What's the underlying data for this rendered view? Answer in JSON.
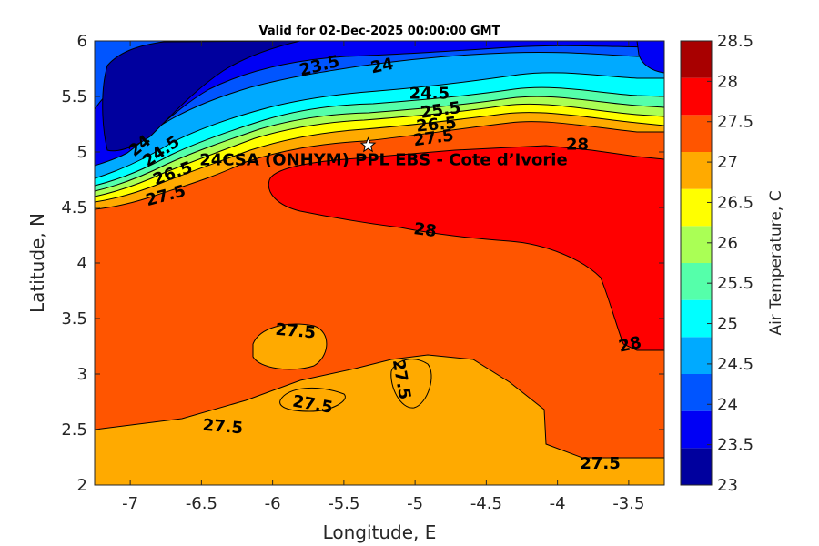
{
  "chart_data": {
    "type": "heatmap",
    "title": "Valid for 02-Dec-2025 00:00:00 GMT",
    "xlabel": "Longitude, E",
    "ylabel": "Latitude, N",
    "xlim": [
      -7.25,
      -3.25
    ],
    "ylim": [
      2,
      6
    ],
    "xticks": [
      -7,
      -6.5,
      -6,
      -5.5,
      -5,
      -4.5,
      -4,
      -3.5
    ],
    "yticks": [
      2,
      2.5,
      3,
      3.5,
      4,
      4.5,
      5,
      5.5,
      6
    ],
    "colorbar": {
      "label": "Air Temperature, C",
      "ticks": [
        23,
        23.5,
        24,
        24.5,
        25,
        25.5,
        26,
        26.5,
        27,
        27.5,
        28,
        28.5
      ],
      "colors": [
        "#00009e",
        "#0000f5",
        "#0055ff",
        "#00aaff",
        "#00ffff",
        "#55ffaa",
        "#aaff55",
        "#ffff00",
        "#ffaa00",
        "#ff5500",
        "#ff0000",
        "#a80000"
      ]
    },
    "site": {
      "name": "24CSA (ONHYM) PPL EBS  - Cote d’Ivorie",
      "lon": -5.33,
      "lat": 5.06
    },
    "contour_labels": [
      {
        "text": "23.5",
        "lon": -5.67,
        "lat": 5.77,
        "angle": -14
      },
      {
        "text": "24",
        "lon": -5.23,
        "lat": 5.77,
        "angle": -12
      },
      {
        "text": "24",
        "lon": -6.93,
        "lat": 5.05,
        "angle": -40
      },
      {
        "text": "24.5",
        "lon": -4.9,
        "lat": 5.52,
        "angle": 0
      },
      {
        "text": "24.5",
        "lon": -6.78,
        "lat": 5.0,
        "angle": -35
      },
      {
        "text": "25.5",
        "lon": -4.82,
        "lat": 5.37,
        "angle": -8
      },
      {
        "text": "26.5",
        "lon": -4.85,
        "lat": 5.24,
        "angle": -5
      },
      {
        "text": "27.5",
        "lon": -4.87,
        "lat": 5.12,
        "angle": -8
      },
      {
        "text": "26.5",
        "lon": -6.7,
        "lat": 4.8,
        "angle": -20
      },
      {
        "text": "27.5",
        "lon": -6.75,
        "lat": 4.6,
        "angle": -15
      },
      {
        "text": "28",
        "lon": -3.86,
        "lat": 5.06,
        "angle": 0
      },
      {
        "text": "28",
        "lon": -4.93,
        "lat": 4.29,
        "angle": 8
      },
      {
        "text": "28",
        "lon": -3.49,
        "lat": 3.26,
        "angle": -12
      },
      {
        "text": "27.5",
        "lon": -5.84,
        "lat": 3.38,
        "angle": 5
      },
      {
        "text": "27.5",
        "lon": -5.1,
        "lat": 2.95,
        "angle": 80
      },
      {
        "text": "27.5",
        "lon": -5.72,
        "lat": 2.72,
        "angle": 10
      },
      {
        "text": "27.5",
        "lon": -6.35,
        "lat": 2.52,
        "angle": 5
      },
      {
        "text": "27.5",
        "lon": -3.7,
        "lat": 2.19,
        "angle": 0
      }
    ]
  }
}
